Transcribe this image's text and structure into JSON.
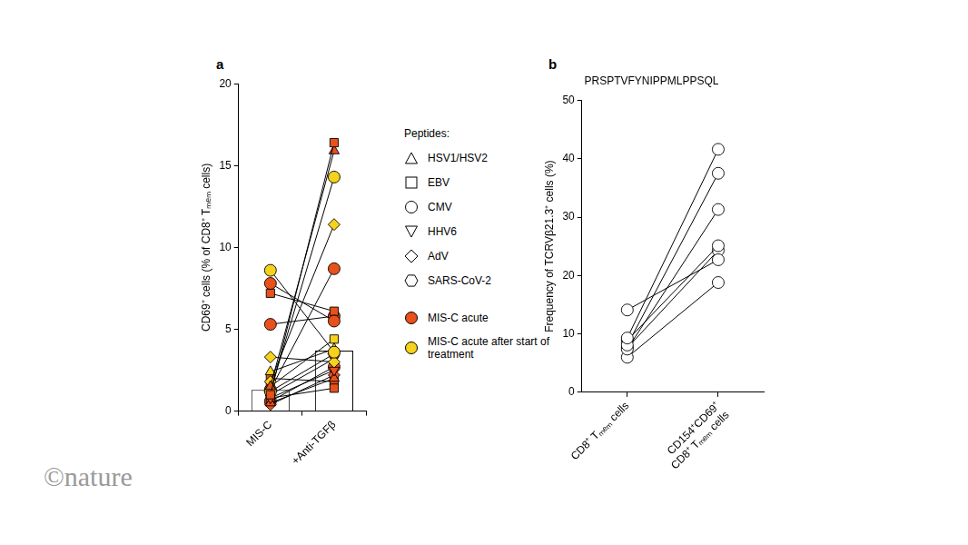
{
  "credit": "©nature",
  "chart_data": [
    {
      "label": "a",
      "type": "line",
      "categories": [
        "MIS-C",
        "+Anti-TGFβ"
      ],
      "y_label": "CD69⁺ cells (% of CD8⁺ Tₘₑₘ cells)",
      "ylim": [
        0,
        20
      ],
      "yticks": [
        0,
        5,
        10,
        15,
        20
      ],
      "grid": false,
      "bar_values": [
        1.3,
        3.7
      ],
      "legend": "right",
      "legend_title": "Peptides:",
      "markers": [
        {
          "name": "HSV1/HSV2",
          "marker": "triangle"
        },
        {
          "name": "EBV",
          "marker": "square"
        },
        {
          "name": "CMV",
          "marker": "circle"
        },
        {
          "name": "HHV6",
          "marker": "triangle-down"
        },
        {
          "name": "AdV",
          "marker": "diamond"
        },
        {
          "name": "SARS-CoV-2",
          "marker": "hexagon"
        }
      ],
      "groups": [
        {
          "name": "MIS-C acute",
          "color": "#e8501c"
        },
        {
          "name": "MIS-C acute after start of treatment",
          "color": "#f6d21c"
        }
      ],
      "series": [
        {
          "peptide": "EBV",
          "group": "MIS-C acute",
          "values": [
            1.0,
            16.4
          ]
        },
        {
          "peptide": "HSV1/HSV2",
          "group": "MIS-C acute",
          "values": [
            1.5,
            15.9
          ]
        },
        {
          "peptide": "CMV",
          "group": "MIS-C acute after start of treatment",
          "values": [
            1.2,
            14.3
          ]
        },
        {
          "peptide": "AdV",
          "group": "MIS-C acute after start of treatment",
          "values": [
            1.8,
            11.4
          ]
        },
        {
          "peptide": "CMV",
          "group": "MIS-C acute",
          "values": [
            1.3,
            8.7
          ]
        },
        {
          "peptide": "CMV",
          "group": "MIS-C acute",
          "values": [
            7.8,
            5.5
          ]
        },
        {
          "peptide": "EBV",
          "group": "MIS-C acute",
          "values": [
            7.2,
            6.1
          ]
        },
        {
          "peptide": "CMV",
          "group": "MIS-C acute after start of treatment",
          "values": [
            8.6,
            3.6
          ]
        },
        {
          "peptide": "CMV",
          "group": "MIS-C acute",
          "values": [
            5.3,
            5.8
          ]
        },
        {
          "peptide": "AdV",
          "group": "MIS-C acute after start of treatment",
          "values": [
            3.3,
            3.0
          ]
        },
        {
          "peptide": "HSV1/HSV2",
          "group": "MIS-C acute after start of treatment",
          "values": [
            2.4,
            3.8
          ]
        },
        {
          "peptide": "EBV",
          "group": "MIS-C acute after start of treatment",
          "values": [
            1.5,
            4.4
          ]
        },
        {
          "peptide": "HHV6",
          "group": "MIS-C acute",
          "values": [
            0.8,
            2.5
          ]
        },
        {
          "peptide": "HSV1/HSV2",
          "group": "MIS-C acute",
          "values": [
            0.5,
            2.0
          ]
        },
        {
          "peptide": "EBV",
          "group": "MIS-C acute",
          "values": [
            0.8,
            1.4
          ]
        },
        {
          "peptide": "HHV6",
          "group": "MIS-C acute",
          "values": [
            1.0,
            3.2
          ]
        },
        {
          "peptide": "AdV",
          "group": "MIS-C acute",
          "values": [
            0.4,
            2.2
          ]
        },
        {
          "peptide": "SARS-CoV-2",
          "group": "MIS-C acute",
          "values": [
            1.2,
            3.5
          ]
        },
        {
          "peptide": "EBV",
          "group": "MIS-C acute",
          "values": [
            2.0,
            1.8
          ]
        },
        {
          "peptide": "CMV",
          "group": "MIS-C acute",
          "values": [
            0.6,
            2.7
          ]
        }
      ]
    },
    {
      "label": "b",
      "type": "line",
      "title": "PRSPTVFYNIPPMLPPSQL",
      "categories": [
        "CD8⁺ Tₘₑₘ cells",
        "CD154⁺CD69⁺ CD8⁺ Tₘₑₘ cells"
      ],
      "y_label": "Frequency of TCRVβ21.3⁺ cells (%)",
      "ylim": [
        0,
        50
      ],
      "yticks": [
        0,
        10,
        20,
        30,
        40,
        50
      ],
      "grid": false,
      "marker": "circle",
      "color": "#ffffff",
      "series": [
        {
          "values": [
            9.3,
            41.6
          ]
        },
        {
          "values": [
            8.1,
            37.5
          ]
        },
        {
          "values": [
            7.4,
            31.3
          ]
        },
        {
          "values": [
            14.1,
            22.7
          ]
        },
        {
          "values": [
            8.9,
            25.1
          ]
        },
        {
          "values": [
            7.6,
            24.3
          ]
        },
        {
          "values": [
            6.0,
            18.8
          ]
        }
      ]
    }
  ]
}
